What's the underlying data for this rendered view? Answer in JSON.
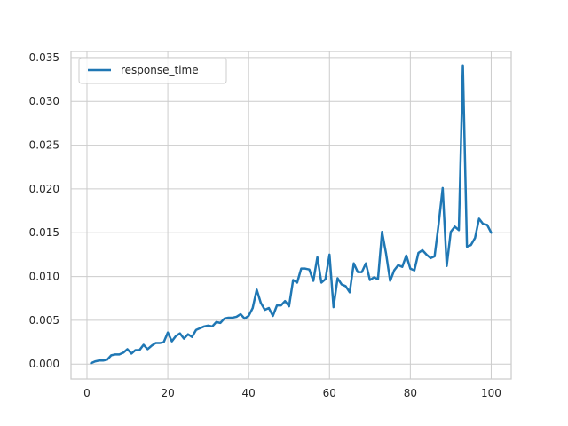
{
  "chart_data": {
    "type": "line",
    "title": "",
    "xlabel": "",
    "ylabel": "",
    "xlim": [
      -3.95,
      104.95
    ],
    "ylim": [
      -0.0017,
      0.0357
    ],
    "grid": true,
    "legend_position": "top-left",
    "x_ticks": [
      0,
      20,
      40,
      60,
      80,
      100
    ],
    "x_tick_labels": [
      "0",
      "20",
      "40",
      "60",
      "80",
      "100"
    ],
    "y_ticks": [
      0.0,
      0.005,
      0.01,
      0.015,
      0.02,
      0.025,
      0.03,
      0.035
    ],
    "y_tick_labels": [
      "0.000",
      "0.005",
      "0.010",
      "0.015",
      "0.020",
      "0.025",
      "0.030",
      "0.035"
    ],
    "colors": {
      "series": "#1f77b4",
      "grid": "#cccccc",
      "text": "#262626"
    },
    "series": [
      {
        "name": "response_time",
        "x": [
          1,
          2,
          3,
          4,
          5,
          6,
          7,
          8,
          9,
          10,
          11,
          12,
          13,
          14,
          15,
          16,
          17,
          18,
          19,
          20,
          21,
          22,
          23,
          24,
          25,
          26,
          27,
          28,
          29,
          30,
          31,
          32,
          33,
          34,
          35,
          36,
          37,
          38,
          39,
          40,
          41,
          42,
          43,
          44,
          45,
          46,
          47,
          48,
          49,
          50,
          51,
          52,
          53,
          54,
          55,
          56,
          57,
          58,
          59,
          60,
          61,
          62,
          63,
          64,
          65,
          66,
          67,
          68,
          69,
          70,
          71,
          72,
          73,
          74,
          75,
          76,
          77,
          78,
          79,
          80,
          81,
          82,
          83,
          84,
          85,
          86,
          87,
          88,
          89,
          90,
          91,
          92,
          93,
          94,
          95,
          96,
          97,
          98,
          99,
          100
        ],
        "values": [
          0.0001,
          0.0003,
          0.0004,
          0.0004,
          0.0005,
          0.001,
          0.0011,
          0.0011,
          0.0013,
          0.0017,
          0.0012,
          0.0016,
          0.0016,
          0.0022,
          0.0017,
          0.0021,
          0.0024,
          0.0024,
          0.0025,
          0.0036,
          0.0026,
          0.0032,
          0.0035,
          0.0029,
          0.0034,
          0.0031,
          0.0039,
          0.0041,
          0.0043,
          0.0044,
          0.0043,
          0.0048,
          0.0047,
          0.0052,
          0.0053,
          0.0053,
          0.0054,
          0.0057,
          0.0052,
          0.0055,
          0.0064,
          0.0085,
          0.007,
          0.0062,
          0.0064,
          0.0055,
          0.0067,
          0.0067,
          0.0072,
          0.0066,
          0.0096,
          0.0093,
          0.0109,
          0.0109,
          0.0108,
          0.0095,
          0.0122,
          0.0093,
          0.0097,
          0.0125,
          0.0065,
          0.0098,
          0.0091,
          0.0089,
          0.0082,
          0.0115,
          0.0105,
          0.0105,
          0.0115,
          0.0096,
          0.0099,
          0.0097,
          0.0151,
          0.0126,
          0.0095,
          0.0107,
          0.0113,
          0.0111,
          0.0124,
          0.0109,
          0.0107,
          0.0127,
          0.013,
          0.0125,
          0.0121,
          0.0123,
          0.016,
          0.0201,
          0.0112,
          0.0151,
          0.0157,
          0.0153,
          0.0341,
          0.0134,
          0.0136,
          0.0144,
          0.0166,
          0.016,
          0.0159,
          0.015
        ]
      }
    ]
  }
}
